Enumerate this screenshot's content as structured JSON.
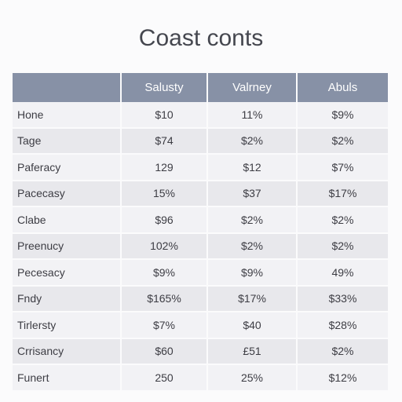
{
  "header": {
    "title": "Coast conts"
  },
  "table": {
    "columns": [
      "Salusty",
      "Valrney",
      "Abuls"
    ],
    "rows": [
      [
        "Hone",
        "$10",
        "11%",
        "$9%"
      ],
      [
        "Tage",
        "$74",
        "$2%",
        "$2%"
      ],
      [
        "Paferacy",
        "129",
        "$12",
        "$7%"
      ],
      [
        "Pacecasy",
        "15%",
        "$37",
        "$17%"
      ],
      [
        "Clabe",
        "$96",
        "$2%",
        "$2%"
      ],
      [
        "Preenucy",
        "102%",
        "$2%",
        "$2%"
      ],
      [
        "Pecesacy",
        "$9%",
        "$9%",
        "49%"
      ],
      [
        "Fndy",
        "$165%",
        "$17%",
        "$33%"
      ],
      [
        "Tirlersty",
        "$7%",
        "$40",
        "$28%"
      ],
      [
        "Crrisancy",
        "$60",
        "£51",
        "$2%"
      ],
      [
        "Funert",
        "250",
        "25%",
        "$12%"
      ]
    ]
  }
}
